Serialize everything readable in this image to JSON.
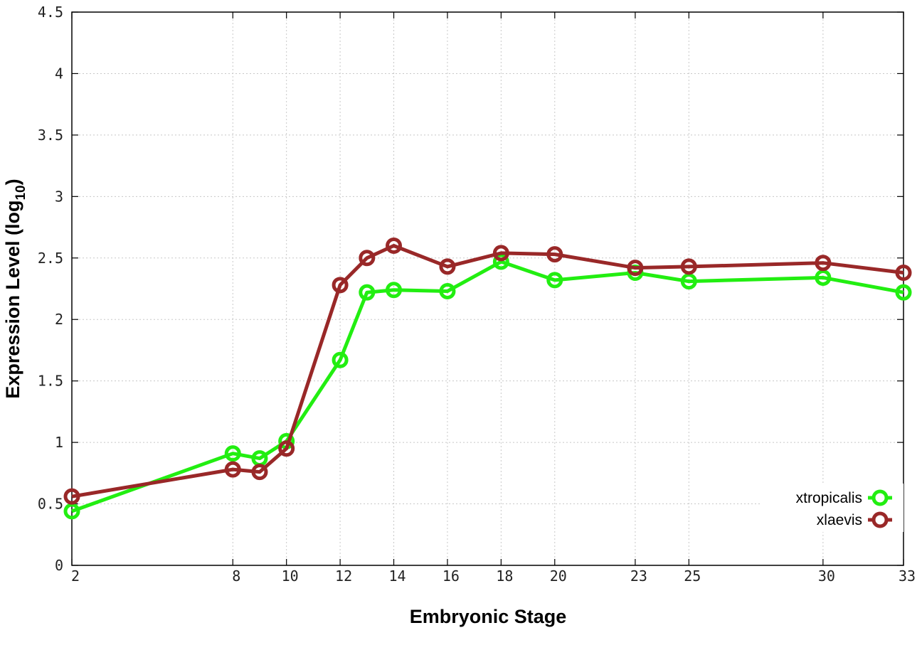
{
  "chart_data": {
    "type": "line",
    "xlabel": "Embryonic Stage",
    "ylabel_main": "Expression Level (log",
    "ylabel_sub": "10",
    "ylabel_close": ")",
    "xlim": [
      2,
      33
    ],
    "ylim": [
      0,
      4.5
    ],
    "x_ticks": [
      2,
      8,
      10,
      12,
      14,
      16,
      18,
      20,
      23,
      25,
      30,
      33
    ],
    "y_ticks": [
      0,
      0.5,
      1,
      1.5,
      2,
      2.5,
      3,
      3.5,
      4,
      4.5
    ],
    "y_tick_labels": [
      "0",
      "0.5",
      "1",
      "1.5",
      "2",
      "2.5",
      "3",
      "3.5",
      "4",
      "4.5"
    ],
    "grid": true,
    "legend_position": "bottom-right",
    "x": [
      2,
      8,
      9,
      10,
      12,
      13,
      14,
      16,
      18,
      20,
      23,
      25,
      30,
      33
    ],
    "series": [
      {
        "name": "xtropicalis",
        "color": "#22ee11",
        "values": [
          0.44,
          0.91,
          0.87,
          1.01,
          1.67,
          2.22,
          2.24,
          2.23,
          2.47,
          2.32,
          2.38,
          2.31,
          2.34,
          2.22
        ]
      },
      {
        "name": "xlaevis",
        "color": "#992828",
        "values": [
          0.56,
          0.78,
          0.76,
          0.95,
          2.28,
          2.5,
          2.6,
          2.43,
          2.54,
          2.53,
          2.42,
          2.43,
          2.46,
          2.38
        ]
      }
    ]
  }
}
